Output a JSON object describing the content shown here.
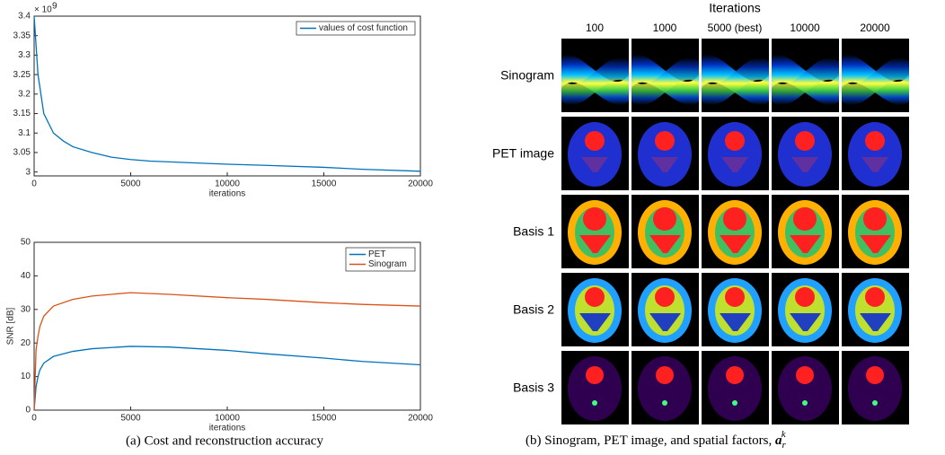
{
  "chart_data": [
    {
      "type": "line",
      "y_multiplier": "× 10",
      "y_multiplier_exp": "9",
      "x_label": "iterations",
      "x": [
        0,
        200,
        500,
        1000,
        1500,
        2000,
        3000,
        4000,
        5000,
        6000,
        8000,
        10000,
        12000,
        15000,
        17000,
        20000
      ],
      "series": [
        {
          "name": "values of cost function",
          "color": "#0072bd",
          "values": [
            3.4,
            3.25,
            3.15,
            3.1,
            3.08,
            3.065,
            3.05,
            3.038,
            3.032,
            3.028,
            3.024,
            3.02,
            3.017,
            3.012,
            3.007,
            3.002
          ]
        }
      ],
      "xlim": [
        0,
        20000
      ],
      "xticks": [
        0,
        5000,
        10000,
        15000,
        20000
      ],
      "ylim": [
        2.99,
        3.4
      ],
      "yticks": [
        3,
        3.05,
        3.1,
        3.15,
        3.2,
        3.25,
        3.3,
        3.35,
        3.4
      ],
      "legend": "top-right"
    },
    {
      "type": "line",
      "x_label": "iterations",
      "y_label": "SNR [dB]",
      "x": [
        0,
        100,
        200,
        300,
        500,
        1000,
        2000,
        3000,
        5000,
        7000,
        10000,
        12000,
        15000,
        17000,
        20000
      ],
      "series": [
        {
          "name": "PET",
          "color": "#0072bd",
          "values": [
            0,
            7,
            10,
            12,
            14,
            16,
            17.5,
            18.3,
            19,
            18.8,
            17.8,
            16.8,
            15.5,
            14.5,
            13.5
          ]
        },
        {
          "name": "Sinogram",
          "color": "#d95319",
          "values": [
            0,
            18,
            22,
            25,
            28,
            31,
            33,
            34,
            35,
            34.5,
            33.5,
            33,
            32,
            31.5,
            31
          ]
        }
      ],
      "xlim": [
        0,
        20000
      ],
      "xticks": [
        0,
        5000,
        10000,
        15000,
        20000
      ],
      "ylim": [
        0,
        50
      ],
      "yticks": [
        0,
        10,
        20,
        30,
        40,
        50
      ],
      "legend": "top-right"
    }
  ],
  "captions": {
    "a": "(a) Cost and reconstruction accuracy",
    "b": "(b) Sinogram, PET image, and spatial factors, ",
    "b_math": "a",
    "b_math_sub": "r",
    "b_math_sup": "k"
  },
  "image_grid": {
    "title": "Iterations",
    "columns": [
      "100",
      "1000",
      "5000 (best)",
      "10000",
      "20000"
    ],
    "rows": [
      "Sinogram",
      "PET image",
      "Basis 1",
      "Basis 2",
      "Basis 3"
    ]
  }
}
